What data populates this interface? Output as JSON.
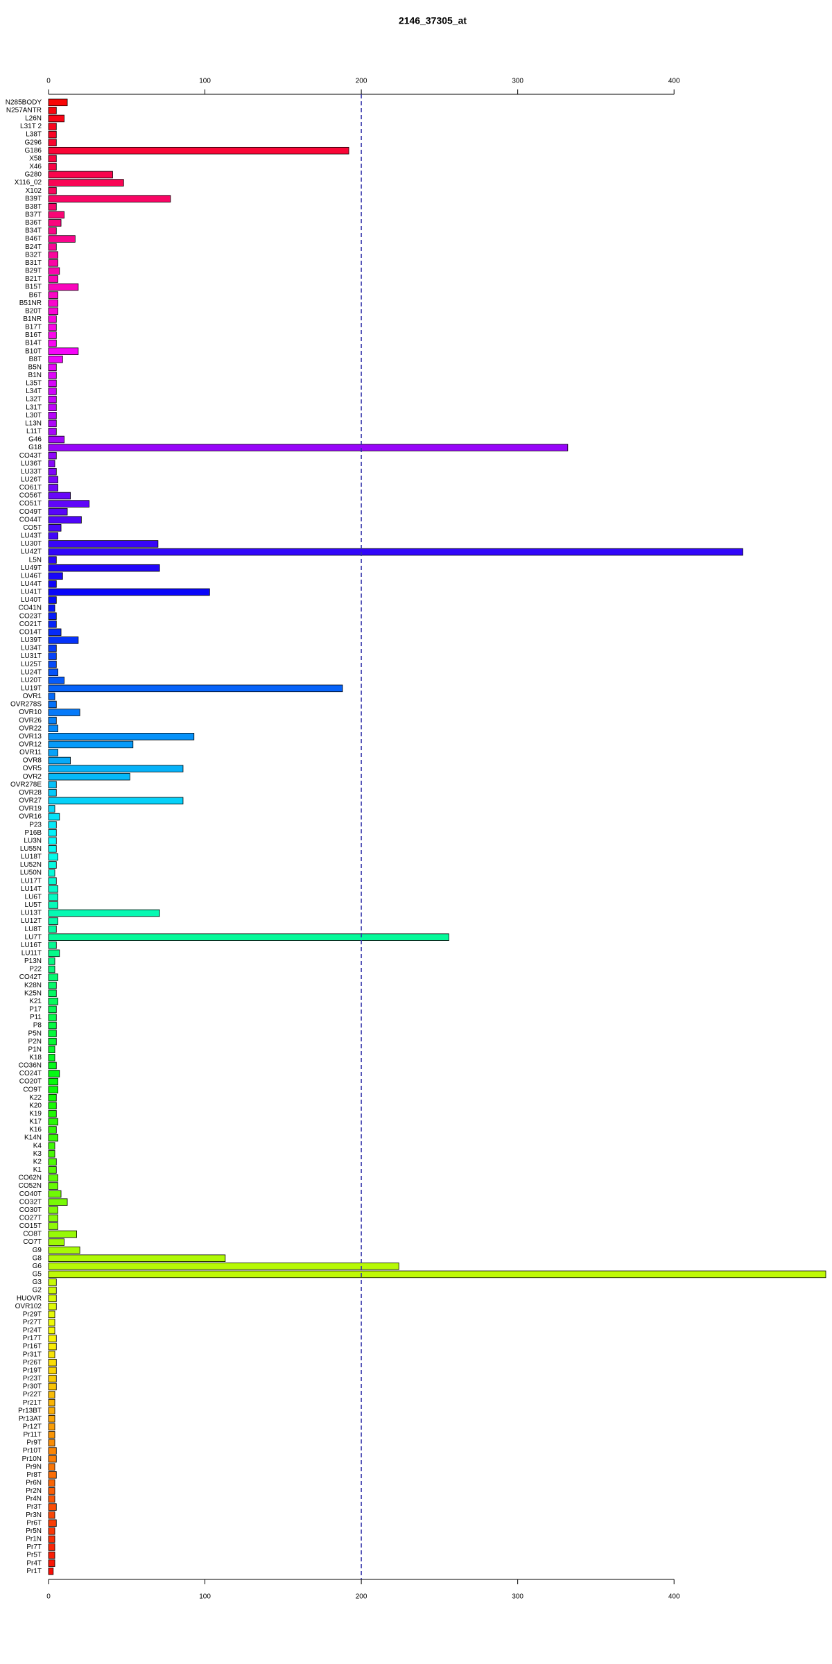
{
  "chart_data": {
    "type": "barh",
    "title": "2146_37305_at",
    "categories": [
      "N285BODY",
      "N257ANTR",
      "L26N",
      "L31T 2",
      "L38T",
      "G296",
      "G186",
      "X58",
      "X46",
      "G280",
      "X116_02",
      "X102",
      "B39T",
      "B38T",
      "B37T",
      "B36T",
      "B34T",
      "B46T",
      "B24T",
      "B32T",
      "B31T",
      "B29T",
      "B21T",
      "B15T",
      "B6T",
      "B51NR",
      "B20T",
      "B1NR",
      "B17T",
      "B16T",
      "B14T",
      "B10T",
      "B8T",
      "B5N",
      "B1N",
      "L35T",
      "L34T",
      "L32T",
      "L31T",
      "L30T",
      "L13N",
      "L11T",
      "G46",
      "G18",
      "CO43T",
      "LU36T",
      "LU33T",
      "LU26T",
      "CO61T",
      "CO56T",
      "CO51T",
      "CO49T",
      "CO44T",
      "CO5T",
      "LU43T",
      "LU30T",
      "LU42T",
      "L5N",
      "LU49T",
      "LU46T",
      "LU44T",
      "LU41T",
      "LU40T",
      "CO41N",
      "CO23T",
      "CO21T",
      "CO14T",
      "LU39T",
      "LU34T",
      "LU31T",
      "LU25T",
      "LU24T",
      "LU20T",
      "LU19T",
      "OVR1",
      "OVR278S",
      "OVR10",
      "OVR26",
      "OVR22",
      "OVR13",
      "OVR12",
      "OVR11",
      "OVR8",
      "OVR5",
      "OVR2",
      "OVR278E",
      "OVR28",
      "OVR27",
      "OVR19",
      "OVR16",
      "P23",
      "P16B",
      "LU3N",
      "LU55N",
      "LU18T",
      "LU52N",
      "LU50N",
      "LU17T",
      "LU14T",
      "LU6T",
      "LU5T",
      "LU13T",
      "LU12T",
      "LU8T",
      "LU7T",
      "LU16T",
      "LU11T",
      "P13N",
      "P22",
      "CO42T",
      "K28N",
      "K25N",
      "K21",
      "P17",
      "P11",
      "P8",
      "P5N",
      "P2N",
      "P1N",
      "K18",
      "CO36N",
      "CO24T",
      "CO20T",
      "CO9T",
      "K22",
      "K20",
      "K19",
      "K17",
      "K16",
      "K14N",
      "K4",
      "K3",
      "K2",
      "K1",
      "CO62N",
      "CO52N",
      "CO40T",
      "CO32T",
      "CO30T",
      "CO27T",
      "CO15T",
      "CO8T",
      "CO7T",
      "G9",
      "G8",
      "G6",
      "G5",
      "G3",
      "G2",
      "HUOVR",
      "OVR102",
      "Pr29T",
      "Pr27T",
      "Pr24T",
      "Pr17T",
      "Pr16T",
      "Pr31T",
      "Pr26T",
      "Pr19T",
      "Pr23T",
      "Pr30T",
      "Pr22T",
      "Pr21T",
      "Pr13BT",
      "Pr13AT",
      "Pr12T",
      "Pr11T",
      "Pr9T",
      "Pr10T",
      "Pr10N",
      "Pr9N",
      "Pr8T",
      "Pr6N",
      "Pr2N",
      "Pr4N",
      "Pr3T",
      "Pr3N",
      "Pr6T",
      "Pr5N",
      "Pr1N",
      "Pr7T",
      "Pr5T",
      "Pr4T",
      "Pr1T"
    ],
    "values": [
      12,
      5,
      10,
      5,
      5,
      5,
      192,
      5,
      5,
      41,
      48,
      5,
      78,
      5,
      10,
      8,
      5,
      17,
      5,
      6,
      6,
      7,
      6,
      19,
      6,
      6,
      6,
      5,
      5,
      5,
      5,
      19,
      9,
      5,
      5,
      5,
      5,
      5,
      5,
      5,
      5,
      5,
      10,
      332,
      5,
      4,
      5,
      6,
      6,
      14,
      26,
      12,
      21,
      8,
      6,
      70,
      444,
      5,
      71,
      9,
      5,
      103,
      5,
      4,
      5,
      5,
      8,
      19,
      5,
      5,
      5,
      6,
      10,
      188,
      4,
      5,
      20,
      5,
      6,
      93,
      54,
      6,
      14,
      86,
      52,
      5,
      5,
      86,
      4,
      7,
      5,
      5,
      5,
      5,
      6,
      5,
      4,
      5,
      6,
      6,
      6,
      71,
      6,
      5,
      256,
      5,
      7,
      4,
      4,
      6,
      5,
      5,
      6,
      5,
      5,
      5,
      5,
      5,
      4,
      4,
      5,
      7,
      6,
      6,
      5,
      5,
      5,
      6,
      5,
      6,
      4,
      4,
      5,
      5,
      6,
      6,
      8,
      12,
      6,
      6,
      6,
      18,
      10,
      20,
      113,
      224,
      497,
      5,
      5,
      5,
      5,
      4,
      4,
      4,
      5,
      5,
      4,
      5,
      5,
      5,
      5,
      4,
      4,
      4,
      4,
      4,
      4,
      4,
      5,
      5,
      4,
      5,
      4,
      4,
      4,
      5,
      4,
      5,
      4,
      4,
      4,
      4,
      4,
      3
    ],
    "colormap": "rainbow",
    "xlim": [
      0,
      497
    ],
    "xticks": [
      0,
      100,
      200,
      300,
      400
    ],
    "reference_line": {
      "value": 200,
      "color": "#3333aa"
    }
  }
}
